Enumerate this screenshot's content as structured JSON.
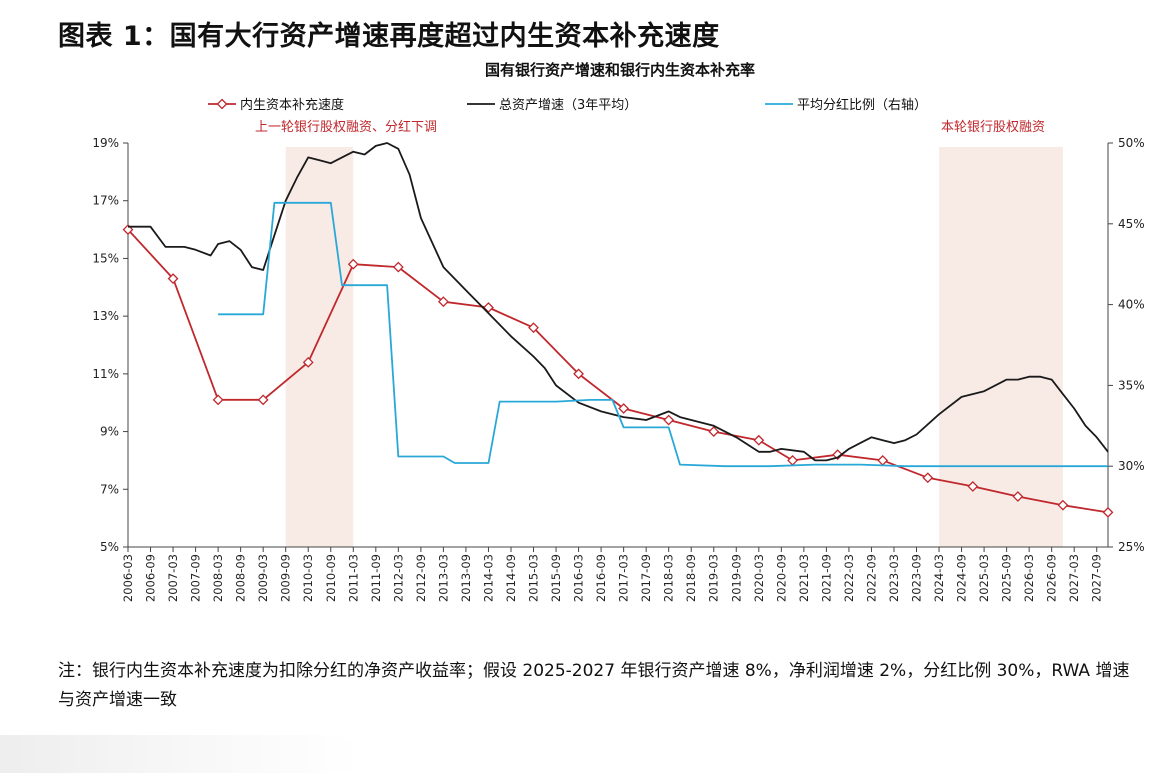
{
  "figure": {
    "title": "图表 1：国有大行资产增速再度超过内生资本补充速度",
    "footnote": "注：银行内生资本补充速度为扣除分红的净资产收益率；假设 2025-2027 年银行资产增速 8%，净利润增速 2%，分红比例 30%，RWA 增速与资产增速一致"
  },
  "colors": {
    "internal": "#c0282d",
    "asset": "#1a1a1a",
    "payout": "#29a8d8",
    "shade": "#f8ebe6",
    "annotation": "#c0282d"
  },
  "chart_data": {
    "type": "line",
    "title": "国有银行资产增速和银行内生资本补充率",
    "xlabel": "",
    "ylabel": "",
    "x_ticks": [
      "2006-03",
      "2006-09",
      "2007-03",
      "2007-09",
      "2008-03",
      "2008-09",
      "2009-03",
      "2009-09",
      "2010-03",
      "2010-09",
      "2011-03",
      "2011-09",
      "2012-03",
      "2012-09",
      "2013-03",
      "2013-09",
      "2014-03",
      "2014-09",
      "2015-03",
      "2015-09",
      "2016-03",
      "2016-09",
      "2017-03",
      "2017-09",
      "2018-03",
      "2018-09",
      "2019-03",
      "2019-09",
      "2020-03",
      "2020-09",
      "2021-03",
      "2021-09",
      "2022-03",
      "2022-09",
      "2023-03",
      "2023-09",
      "2024-03",
      "2024-09",
      "2025-03",
      "2025-09",
      "2026-03",
      "2026-09",
      "2027-03",
      "2027-09"
    ],
    "x_range": [
      "2006-03",
      "2027-12"
    ],
    "y_left": {
      "min": 5,
      "max": 19,
      "ticks": [
        5,
        7,
        9,
        11,
        13,
        15,
        17,
        19
      ],
      "unit": "%"
    },
    "y_right": {
      "min": 25,
      "max": 50,
      "ticks": [
        25,
        30,
        35,
        40,
        45,
        50
      ],
      "unit": "%"
    },
    "grid": false,
    "legend": {
      "position": "top"
    },
    "shaded_regions": [
      {
        "from": "2009-09",
        "to": "2011-03",
        "label": "上一轮银行股权融资、分红下调"
      },
      {
        "from": "2024-03",
        "to": "2026-12",
        "label": "本轮银行股权融资"
      }
    ],
    "series": [
      {
        "name": "内生资本补充速度",
        "axis": "left",
        "marker": "diamond",
        "points": [
          [
            "2006-03",
            16.0
          ],
          [
            "2007-03",
            14.3
          ],
          [
            "2008-03",
            10.1
          ],
          [
            "2009-03",
            10.1
          ],
          [
            "2010-03",
            11.4
          ],
          [
            "2011-03",
            14.8
          ],
          [
            "2012-03",
            14.7
          ],
          [
            "2013-03",
            13.5
          ],
          [
            "2014-03",
            13.3
          ],
          [
            "2015-03",
            12.6
          ],
          [
            "2016-03",
            11.0
          ],
          [
            "2017-03",
            9.8
          ],
          [
            "2018-03",
            9.4
          ],
          [
            "2019-03",
            9.0
          ],
          [
            "2020-03",
            8.7
          ],
          [
            "2020-12",
            8.0
          ],
          [
            "2021-12",
            8.2
          ],
          [
            "2022-12",
            8.0
          ],
          [
            "2023-12",
            7.4
          ],
          [
            "2024-12",
            7.1
          ],
          [
            "2025-12",
            6.75
          ],
          [
            "2026-12",
            6.45
          ],
          [
            "2027-12",
            6.2
          ]
        ]
      },
      {
        "name": "总资产增速（3年平均）",
        "axis": "left",
        "marker": "none",
        "points": [
          [
            "2006-03",
            16.1
          ],
          [
            "2006-09",
            16.1
          ],
          [
            "2007-01",
            15.4
          ],
          [
            "2007-06",
            15.4
          ],
          [
            "2007-09",
            15.3
          ],
          [
            "2008-01",
            15.1
          ],
          [
            "2008-03",
            15.5
          ],
          [
            "2008-06",
            15.6
          ],
          [
            "2008-09",
            15.3
          ],
          [
            "2008-12",
            14.7
          ],
          [
            "2009-03",
            14.6
          ],
          [
            "2009-06",
            15.8
          ],
          [
            "2009-09",
            17.0
          ],
          [
            "2009-12",
            17.8
          ],
          [
            "2010-03",
            18.5
          ],
          [
            "2010-06",
            18.4
          ],
          [
            "2010-09",
            18.3
          ],
          [
            "2010-12",
            18.5
          ],
          [
            "2011-03",
            18.7
          ],
          [
            "2011-06",
            18.6
          ],
          [
            "2011-09",
            18.9
          ],
          [
            "2011-12",
            19.0
          ],
          [
            "2012-03",
            18.8
          ],
          [
            "2012-06",
            17.9
          ],
          [
            "2012-09",
            16.4
          ],
          [
            "2013-03",
            14.7
          ],
          [
            "2013-09",
            13.9
          ],
          [
            "2014-03",
            13.1
          ],
          [
            "2014-09",
            12.3
          ],
          [
            "2015-03",
            11.6
          ],
          [
            "2015-06",
            11.2
          ],
          [
            "2015-09",
            10.6
          ],
          [
            "2016-03",
            10.0
          ],
          [
            "2016-09",
            9.7
          ],
          [
            "2017-03",
            9.5
          ],
          [
            "2017-09",
            9.4
          ],
          [
            "2018-03",
            9.7
          ],
          [
            "2018-06",
            9.5
          ],
          [
            "2018-09",
            9.4
          ],
          [
            "2019-03",
            9.2
          ],
          [
            "2019-09",
            8.8
          ],
          [
            "2020-03",
            8.3
          ],
          [
            "2020-06",
            8.3
          ],
          [
            "2020-09",
            8.4
          ],
          [
            "2021-03",
            8.3
          ],
          [
            "2021-06",
            8.0
          ],
          [
            "2021-09",
            8.0
          ],
          [
            "2021-12",
            8.1
          ],
          [
            "2022-03",
            8.4
          ],
          [
            "2022-06",
            8.6
          ],
          [
            "2022-09",
            8.8
          ],
          [
            "2022-12",
            8.7
          ],
          [
            "2023-03",
            8.6
          ],
          [
            "2023-06",
            8.7
          ],
          [
            "2023-09",
            8.9
          ],
          [
            "2024-03",
            9.6
          ],
          [
            "2024-09",
            10.2
          ],
          [
            "2025-03",
            10.4
          ],
          [
            "2025-09",
            10.8
          ],
          [
            "2025-12",
            10.8
          ],
          [
            "2026-03",
            10.9
          ],
          [
            "2026-06",
            10.9
          ],
          [
            "2026-09",
            10.8
          ],
          [
            "2026-12",
            10.3
          ],
          [
            "2027-03",
            9.8
          ],
          [
            "2027-06",
            9.2
          ],
          [
            "2027-09",
            8.8
          ],
          [
            "2027-12",
            8.3
          ],
          [
            "2028-03",
            8.0
          ],
          [
            "2028-09",
            8.0
          ]
        ]
      },
      {
        "name": "平均分红比例（右轴）",
        "axis": "right",
        "marker": "none",
        "points": [
          [
            "2008-03",
            39.4
          ],
          [
            "2009-03",
            39.4
          ],
          [
            "2009-06",
            46.3
          ],
          [
            "2010-09",
            46.3
          ],
          [
            "2010-12",
            41.2
          ],
          [
            "2011-12",
            41.2
          ],
          [
            "2012-03",
            30.6
          ],
          [
            "2013-03",
            30.6
          ],
          [
            "2013-06",
            30.2
          ],
          [
            "2014-03",
            30.2
          ],
          [
            "2014-06",
            34.0
          ],
          [
            "2015-09",
            34.0
          ],
          [
            "2016-06",
            34.1
          ],
          [
            "2016-12",
            34.1
          ],
          [
            "2017-03",
            32.4
          ],
          [
            "2018-03",
            32.4
          ],
          [
            "2018-06",
            30.1
          ],
          [
            "2019-06",
            30.0
          ],
          [
            "2020-06",
            30.0
          ],
          [
            "2021-06",
            30.1
          ],
          [
            "2022-06",
            30.1
          ],
          [
            "2023-06",
            30.0
          ],
          [
            "2024-06",
            30.0
          ],
          [
            "2025-06",
            30.0
          ],
          [
            "2026-06",
            30.0
          ],
          [
            "2027-06",
            30.0
          ],
          [
            "2028-06",
            30.0
          ],
          [
            "2028-09",
            30.0
          ]
        ]
      }
    ]
  }
}
